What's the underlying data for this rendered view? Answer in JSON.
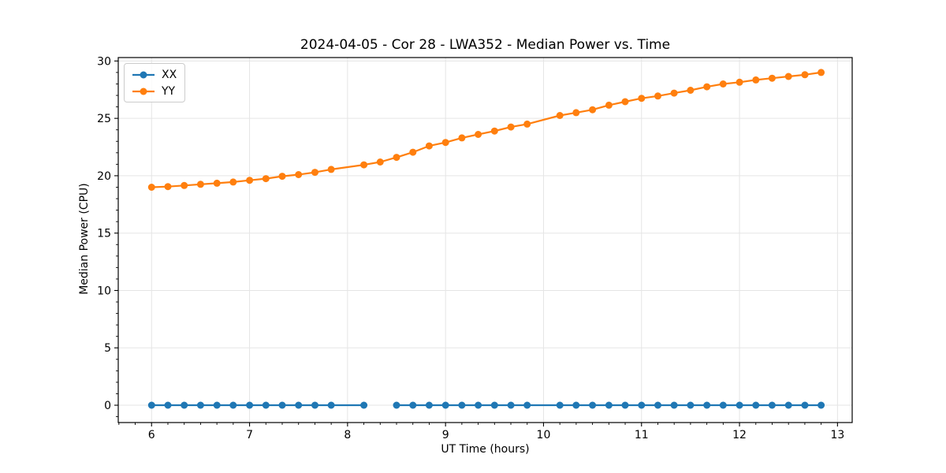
{
  "chart_data": {
    "type": "line",
    "title": "2024-04-05 - Cor 28 - LWA352 - Median Power vs. Time",
    "xlabel": "UT Time (hours)",
    "ylabel": "Median Power (CPU)",
    "xlim": [
      5.66,
      13.15
    ],
    "ylim": [
      -1.51,
      30.3
    ],
    "xticks": [
      6,
      7,
      8,
      9,
      10,
      11,
      12,
      13
    ],
    "yticks": [
      0,
      5,
      10,
      15,
      20,
      25,
      30
    ],
    "x_minor_step": 0.1667,
    "y_minor_step": 1,
    "grid": true,
    "grid_color": "#e5e5e5",
    "legend_position": "upper left",
    "x": [
      6.0,
      6.167,
      6.333,
      6.5,
      6.667,
      6.833,
      7.0,
      7.167,
      7.333,
      7.5,
      7.667,
      7.833,
      8.167,
      8.333,
      8.5,
      8.667,
      8.833,
      9.0,
      9.167,
      9.333,
      9.5,
      9.667,
      9.833,
      10.167,
      10.333,
      10.5,
      10.667,
      10.833,
      11.0,
      11.167,
      11.333,
      11.5,
      11.667,
      11.833,
      12.0,
      12.167,
      12.333,
      12.5,
      12.667,
      12.833
    ],
    "series": [
      {
        "name": "XX",
        "color": "#1f77b4",
        "values": [
          0,
          0,
          0,
          0,
          0,
          0,
          0,
          0,
          0,
          0,
          0,
          0,
          0,
          null,
          0,
          0,
          0,
          0,
          0,
          0,
          0,
          0,
          0,
          0,
          0,
          0,
          0,
          0,
          0,
          0,
          0,
          0,
          0,
          0,
          0,
          0,
          0,
          0,
          0,
          0
        ]
      },
      {
        "name": "YY",
        "color": "#ff7f0e",
        "values": [
          19.0,
          19.05,
          19.15,
          19.25,
          19.35,
          19.45,
          19.6,
          19.75,
          19.95,
          20.1,
          20.3,
          20.55,
          20.95,
          21.2,
          21.6,
          22.05,
          22.6,
          22.9,
          23.3,
          23.6,
          23.9,
          24.25,
          24.5,
          25.25,
          25.5,
          25.75,
          26.15,
          26.45,
          26.75,
          26.95,
          27.2,
          27.45,
          27.75,
          28.0,
          28.15,
          28.35,
          28.5,
          28.65,
          28.8,
          29.0
        ]
      }
    ]
  }
}
